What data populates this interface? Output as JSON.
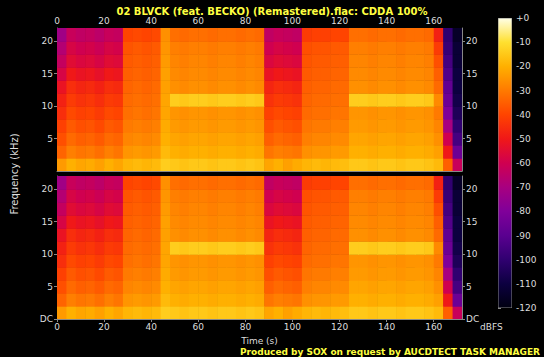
{
  "chart_data": [
    {
      "type": "heatmap",
      "title": "02 BLVCK (feat. BECKO) (Remastered).flac: CDDA 100%",
      "xlim": [
        0,
        172
      ],
      "xticks": [
        0,
        20,
        40,
        60,
        80,
        100,
        120,
        140,
        160
      ],
      "ylim": [
        0,
        22.05
      ],
      "yticks": [
        5,
        10,
        15,
        20
      ],
      "time_bins": [
        0,
        4,
        8,
        12,
        16,
        20,
        24,
        28,
        32,
        36,
        40,
        44,
        48,
        52,
        56,
        60,
        64,
        68,
        72,
        76,
        80,
        84,
        88,
        92,
        96,
        100,
        104,
        108,
        112,
        116,
        120,
        124,
        128,
        132,
        136,
        140,
        144,
        148,
        152,
        156,
        160,
        164,
        168,
        172
      ],
      "freq_bins": [
        0,
        2,
        4,
        6,
        8,
        10,
        12,
        14,
        16,
        18,
        20,
        22.05
      ],
      "cells": [
        [
          -24,
          -20,
          -22,
          -21,
          -23,
          -20,
          -22,
          -19,
          -18,
          -19,
          -18,
          -14,
          -15,
          -16,
          -15,
          -15,
          -16,
          -15,
          -15,
          -16,
          -15,
          -16,
          -22,
          -20,
          -23,
          -21,
          -19,
          -18,
          -19,
          -18,
          -17,
          -15,
          -15,
          -16,
          -15,
          -15,
          -16,
          -15,
          -15,
          -16,
          -18,
          -35,
          -62
        ],
        [
          -34,
          -29,
          -31,
          -30,
          -32,
          -29,
          -31,
          -25,
          -24,
          -25,
          -24,
          -18,
          -20,
          -21,
          -20,
          -20,
          -21,
          -20,
          -20,
          -21,
          -20,
          -21,
          -31,
          -29,
          -30,
          -31,
          -26,
          -25,
          -25,
          -24,
          -24,
          -20,
          -20,
          -21,
          -20,
          -20,
          -21,
          -20,
          -20,
          -21,
          -23,
          -50,
          -85
        ],
        [
          -38,
          -33,
          -35,
          -34,
          -36,
          -33,
          -34,
          -28,
          -27,
          -28,
          -27,
          -20,
          -22,
          -23,
          -22,
          -22,
          -23,
          -22,
          -22,
          -23,
          -22,
          -23,
          -35,
          -33,
          -34,
          -35,
          -29,
          -28,
          -28,
          -27,
          -27,
          -22,
          -22,
          -23,
          -22,
          -22,
          -23,
          -22,
          -22,
          -23,
          -26,
          -60,
          -95
        ],
        [
          -41,
          -36,
          -38,
          -37,
          -39,
          -36,
          -37,
          -30,
          -29,
          -30,
          -29,
          -21,
          -24,
          -25,
          -24,
          -24,
          -25,
          -24,
          -24,
          -25,
          -24,
          -25,
          -38,
          -36,
          -37,
          -38,
          -31,
          -30,
          -30,
          -29,
          -29,
          -24,
          -24,
          -25,
          -24,
          -24,
          -25,
          -24,
          -24,
          -25,
          -28,
          -70,
          -100
        ],
        [
          -45,
          -39,
          -41,
          -40,
          -42,
          -39,
          -40,
          -32,
          -31,
          -32,
          -31,
          -22,
          -25,
          -26,
          -25,
          -25,
          -26,
          -25,
          -25,
          -26,
          -25,
          -26,
          -41,
          -39,
          -40,
          -41,
          -33,
          -32,
          -32,
          -31,
          -31,
          -25,
          -25,
          -26,
          -25,
          -25,
          -26,
          -25,
          -25,
          -26,
          -30,
          -80,
          -105
        ],
        [
          -48,
          -42,
          -44,
          -43,
          -45,
          -42,
          -43,
          -33,
          -32,
          -33,
          -32,
          -22,
          -14,
          -15,
          -14,
          -14,
          -15,
          -14,
          -14,
          -15,
          -14,
          -15,
          -44,
          -42,
          -43,
          -44,
          -34,
          -33,
          -33,
          -32,
          -32,
          -14,
          -14,
          -15,
          -14,
          -14,
          -15,
          -14,
          -14,
          -15,
          -27,
          -85,
          -108
        ],
        [
          -52,
          -45,
          -47,
          -46,
          -48,
          -45,
          -46,
          -34,
          -33,
          -34,
          -33,
          -23,
          -26,
          -27,
          -26,
          -26,
          -27,
          -26,
          -26,
          -27,
          -26,
          -27,
          -47,
          -45,
          -46,
          -47,
          -35,
          -34,
          -34,
          -33,
          -33,
          -26,
          -26,
          -27,
          -26,
          -26,
          -27,
          -26,
          -26,
          -27,
          -33,
          -88,
          -110
        ],
        [
          -58,
          -50,
          -52,
          -51,
          -53,
          -50,
          -51,
          -35,
          -34,
          -35,
          -34,
          -23,
          -27,
          -28,
          -27,
          -27,
          -28,
          -27,
          -27,
          -28,
          -27,
          -28,
          -52,
          -50,
          -51,
          -52,
          -36,
          -35,
          -35,
          -34,
          -34,
          -27,
          -27,
          -28,
          -27,
          -27,
          -28,
          -27,
          -27,
          -28,
          -35,
          -92,
          -110
        ],
        [
          -63,
          -55,
          -57,
          -56,
          -58,
          -55,
          -56,
          -36,
          -35,
          -36,
          -35,
          -24,
          -28,
          -29,
          -28,
          -28,
          -29,
          -28,
          -28,
          -29,
          -28,
          -29,
          -57,
          -55,
          -56,
          -57,
          -37,
          -36,
          -36,
          -35,
          -35,
          -28,
          -28,
          -29,
          -28,
          -28,
          -29,
          -28,
          -28,
          -29,
          -38,
          -95,
          -112
        ],
        [
          -67,
          -58,
          -60,
          -59,
          -61,
          -58,
          -59,
          -37,
          -36,
          -37,
          -36,
          -25,
          -29,
          -30,
          -29,
          -29,
          -30,
          -29,
          -29,
          -30,
          -29,
          -30,
          -60,
          -58,
          -59,
          -60,
          -38,
          -37,
          -37,
          -36,
          -36,
          -29,
          -29,
          -30,
          -29,
          -29,
          -30,
          -29,
          -29,
          -30,
          -42,
          -98,
          -112
        ],
        [
          -72,
          -62,
          -64,
          -63,
          -65,
          -62,
          -63,
          -40,
          -39,
          -40,
          -39,
          -26,
          -32,
          -33,
          -32,
          -32,
          -33,
          -32,
          -32,
          -33,
          -32,
          -33,
          -64,
          -62,
          -63,
          -64,
          -42,
          -41,
          -41,
          -40,
          -40,
          -32,
          -32,
          -33,
          -32,
          -32,
          -33,
          -32,
          -32,
          -33,
          -48,
          -100,
          -115
        ]
      ]
    },
    {
      "type": "heatmap",
      "x_label": "Time (s)",
      "y_label": "Frequency (kHz)",
      "annotation": "Produced by SOX on request by AUCDTECT TASK MANAGER",
      "xlim": [
        0,
        172
      ],
      "xticks": [
        0,
        20,
        40,
        60,
        80,
        100,
        120,
        140,
        160
      ],
      "ylim": [
        0,
        22.05
      ],
      "yticks": [
        {
          "value": 0,
          "label": "DC"
        },
        5,
        10,
        15,
        20
      ],
      "time_bins": [
        0,
        4,
        8,
        12,
        16,
        20,
        24,
        28,
        32,
        36,
        40,
        44,
        48,
        52,
        56,
        60,
        64,
        68,
        72,
        76,
        80,
        84,
        88,
        92,
        96,
        100,
        104,
        108,
        112,
        116,
        120,
        124,
        128,
        132,
        136,
        140,
        144,
        148,
        152,
        156,
        160,
        164,
        168,
        172
      ],
      "freq_bins": [
        0,
        2,
        4,
        6,
        8,
        10,
        12,
        14,
        16,
        18,
        20,
        22.05
      ],
      "cells": [
        [
          -24,
          -20,
          -22,
          -21,
          -23,
          -20,
          -22,
          -19,
          -18,
          -19,
          -18,
          -14,
          -15,
          -16,
          -15,
          -15,
          -16,
          -15,
          -15,
          -16,
          -15,
          -16,
          -22,
          -20,
          -23,
          -21,
          -19,
          -18,
          -19,
          -18,
          -17,
          -15,
          -15,
          -16,
          -15,
          -15,
          -16,
          -15,
          -15,
          -16,
          -18,
          -35,
          -62
        ],
        [
          -34,
          -29,
          -31,
          -30,
          -32,
          -29,
          -31,
          -25,
          -24,
          -25,
          -24,
          -18,
          -20,
          -21,
          -20,
          -20,
          -21,
          -20,
          -20,
          -21,
          -20,
          -21,
          -31,
          -29,
          -30,
          -31,
          -26,
          -25,
          -25,
          -24,
          -24,
          -20,
          -20,
          -21,
          -20,
          -20,
          -21,
          -20,
          -20,
          -21,
          -23,
          -50,
          -85
        ],
        [
          -38,
          -33,
          -35,
          -34,
          -36,
          -33,
          -34,
          -28,
          -27,
          -28,
          -27,
          -20,
          -22,
          -23,
          -22,
          -22,
          -23,
          -22,
          -22,
          -23,
          -22,
          -23,
          -35,
          -33,
          -34,
          -35,
          -29,
          -28,
          -28,
          -27,
          -27,
          -22,
          -22,
          -23,
          -22,
          -22,
          -23,
          -22,
          -22,
          -23,
          -26,
          -60,
          -95
        ],
        [
          -41,
          -36,
          -38,
          -37,
          -39,
          -36,
          -37,
          -30,
          -29,
          -30,
          -29,
          -21,
          -24,
          -25,
          -24,
          -24,
          -25,
          -24,
          -24,
          -25,
          -24,
          -25,
          -38,
          -36,
          -37,
          -38,
          -31,
          -30,
          -30,
          -29,
          -29,
          -24,
          -24,
          -25,
          -24,
          -24,
          -25,
          -24,
          -24,
          -25,
          -28,
          -70,
          -100
        ],
        [
          -45,
          -39,
          -41,
          -40,
          -42,
          -39,
          -40,
          -32,
          -31,
          -32,
          -31,
          -22,
          -25,
          -26,
          -25,
          -25,
          -26,
          -25,
          -25,
          -26,
          -25,
          -26,
          -41,
          -39,
          -40,
          -41,
          -33,
          -32,
          -32,
          -31,
          -31,
          -25,
          -25,
          -26,
          -25,
          -25,
          -26,
          -25,
          -25,
          -26,
          -30,
          -80,
          -105
        ],
        [
          -48,
          -42,
          -44,
          -43,
          -45,
          -42,
          -43,
          -33,
          -32,
          -33,
          -32,
          -22,
          -14,
          -15,
          -14,
          -14,
          -15,
          -14,
          -14,
          -15,
          -14,
          -15,
          -44,
          -42,
          -43,
          -44,
          -34,
          -33,
          -33,
          -32,
          -32,
          -14,
          -14,
          -15,
          -14,
          -14,
          -15,
          -14,
          -14,
          -15,
          -27,
          -85,
          -108
        ],
        [
          -52,
          -45,
          -47,
          -46,
          -48,
          -45,
          -46,
          -34,
          -33,
          -34,
          -33,
          -23,
          -26,
          -27,
          -26,
          -26,
          -27,
          -26,
          -26,
          -27,
          -26,
          -27,
          -47,
          -45,
          -46,
          -47,
          -35,
          -34,
          -34,
          -33,
          -33,
          -26,
          -26,
          -27,
          -26,
          -26,
          -27,
          -26,
          -26,
          -27,
          -33,
          -88,
          -110
        ],
        [
          -58,
          -50,
          -52,
          -51,
          -53,
          -50,
          -51,
          -35,
          -34,
          -35,
          -34,
          -23,
          -27,
          -28,
          -27,
          -27,
          -28,
          -27,
          -27,
          -28,
          -27,
          -28,
          -52,
          -50,
          -51,
          -52,
          -36,
          -35,
          -35,
          -34,
          -34,
          -27,
          -27,
          -28,
          -27,
          -27,
          -28,
          -27,
          -27,
          -28,
          -35,
          -92,
          -110
        ],
        [
          -63,
          -55,
          -57,
          -56,
          -58,
          -55,
          -56,
          -36,
          -35,
          -36,
          -35,
          -24,
          -28,
          -29,
          -28,
          -28,
          -29,
          -28,
          -28,
          -29,
          -28,
          -29,
          -57,
          -55,
          -56,
          -57,
          -37,
          -36,
          -36,
          -35,
          -35,
          -28,
          -28,
          -29,
          -28,
          -28,
          -29,
          -28,
          -28,
          -29,
          -38,
          -95,
          -112
        ],
        [
          -67,
          -58,
          -60,
          -59,
          -61,
          -58,
          -59,
          -37,
          -36,
          -37,
          -36,
          -25,
          -29,
          -30,
          -29,
          -29,
          -30,
          -29,
          -29,
          -30,
          -29,
          -30,
          -60,
          -58,
          -59,
          -60,
          -38,
          -37,
          -37,
          -36,
          -36,
          -29,
          -29,
          -30,
          -29,
          -29,
          -30,
          -29,
          -29,
          -30,
          -42,
          -98,
          -112
        ],
        [
          -72,
          -62,
          -64,
          -63,
          -65,
          -62,
          -63,
          -40,
          -39,
          -40,
          -39,
          -26,
          -32,
          -33,
          -32,
          -32,
          -33,
          -32,
          -32,
          -33,
          -32,
          -33,
          -64,
          -62,
          -63,
          -64,
          -42,
          -41,
          -41,
          -40,
          -40,
          -32,
          -32,
          -33,
          -32,
          -32,
          -33,
          -32,
          -32,
          -33,
          -48,
          -100,
          -115
        ]
      ]
    },
    {
      "type": "colorbar",
      "y_label": "dBFS",
      "ylim": [
        -120,
        0
      ],
      "yticks": [
        {
          "value": 0,
          "label": "+0"
        },
        -10,
        -20,
        -30,
        -40,
        -50,
        -60,
        -70,
        -80,
        -90,
        -100,
        -110,
        -120
      ]
    }
  ]
}
